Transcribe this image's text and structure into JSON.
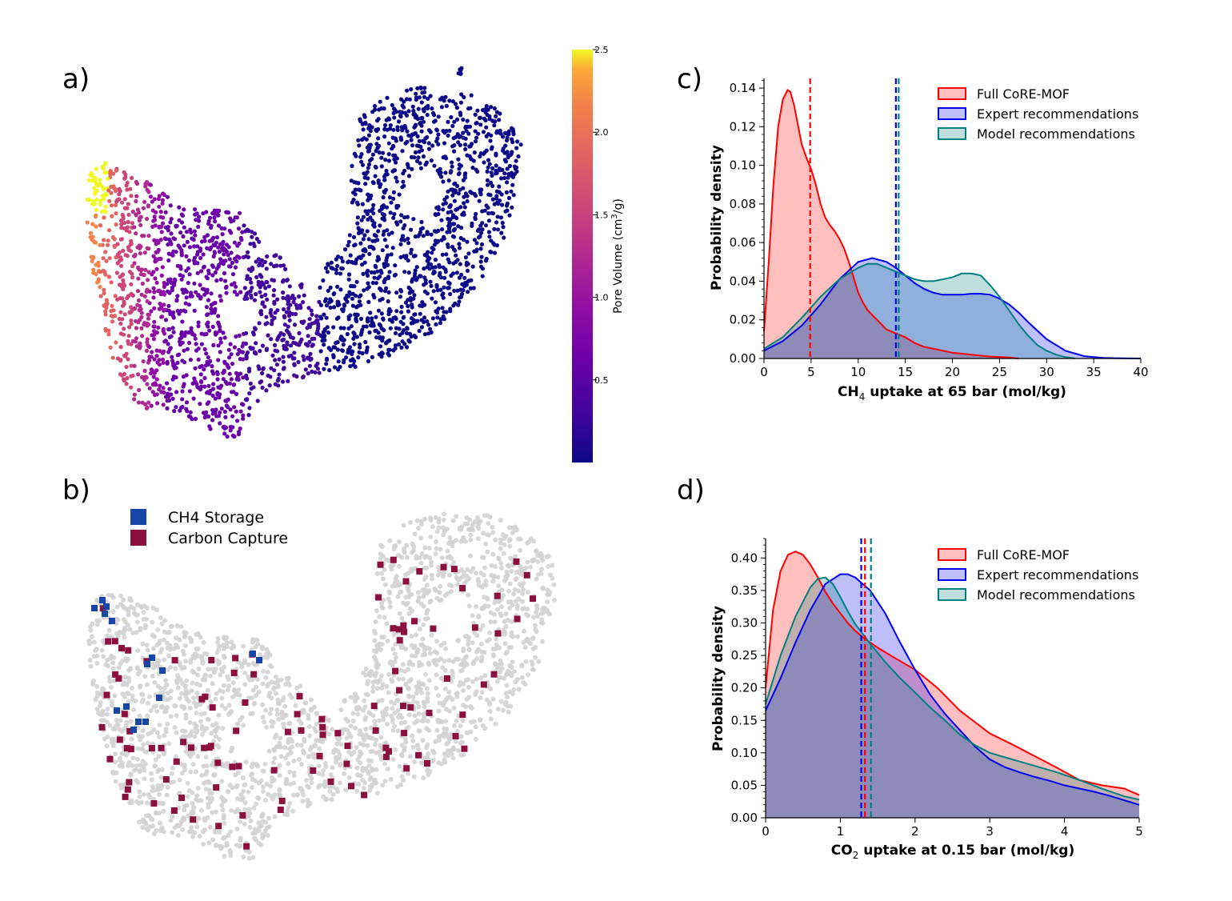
{
  "panel_labels": {
    "a": "a)",
    "b": "b)",
    "c": "c)",
    "d": "d)"
  },
  "colors": {
    "full": "#ff0000",
    "expert": "#0000ee",
    "model": "#008080",
    "ch4_storage": "#1747a6",
    "carbon_capture": "#8b1040",
    "background_points": "#d3d3d3"
  },
  "panel_a": {
    "colorbar": {
      "label_parts": [
        "Pore Volume (cm",
        "3",
        "/g)"
      ],
      "ticks": [
        "0.5",
        "1.0",
        "1.5",
        "2.0",
        "2.5"
      ],
      "colormap": "plasma",
      "range": [
        0.0,
        2.5
      ]
    }
  },
  "panel_b": {
    "legend": [
      {
        "label": "CH4 Storage",
        "color": "#1747a6"
      },
      {
        "label": "Carbon Capture",
        "color": "#8b1040"
      }
    ]
  },
  "chart_data": [
    {
      "id": "c",
      "type": "area",
      "title": "",
      "xlabel_parts": [
        "CH",
        "4",
        " uptake at 65 bar (mol/kg)"
      ],
      "ylabel": "Probability density",
      "xlim": [
        0,
        40
      ],
      "ylim": [
        0,
        0.145
      ],
      "xticks": [
        0,
        5,
        10,
        15,
        20,
        25,
        30,
        35,
        40
      ],
      "yticks": [
        0.0,
        0.02,
        0.04,
        0.06,
        0.08,
        0.1,
        0.12,
        0.14
      ],
      "ytick_decimals": 2,
      "legend_position": "top-right",
      "series": [
        {
          "name": "Full CoRE-MOF",
          "color": "#ff0000",
          "mean": 4.9,
          "x": [
            0,
            0.5,
            1,
            1.5,
            2,
            2.5,
            2.8,
            3.2,
            3.6,
            4,
            4.5,
            5,
            5.5,
            6,
            6.5,
            7,
            7.5,
            8,
            8.5,
            9,
            9.5,
            10,
            10.5,
            11,
            12,
            13,
            14,
            15,
            16,
            17,
            18,
            19,
            20,
            22,
            24,
            26,
            27
          ],
          "y": [
            0.014,
            0.05,
            0.09,
            0.12,
            0.134,
            0.139,
            0.138,
            0.131,
            0.121,
            0.111,
            0.104,
            0.098,
            0.09,
            0.08,
            0.073,
            0.069,
            0.066,
            0.062,
            0.057,
            0.05,
            0.042,
            0.034,
            0.029,
            0.025,
            0.02,
            0.015,
            0.013,
            0.011,
            0.008,
            0.006,
            0.005,
            0.004,
            0.003,
            0.002,
            0.001,
            0.0005,
            0.0
          ]
        },
        {
          "name": "Expert recommendations",
          "color": "#0000ee",
          "mean": 14.0,
          "x": [
            0,
            2,
            4,
            6,
            8,
            10,
            11.5,
            13,
            14,
            15,
            16,
            17,
            18,
            19,
            20,
            21,
            22,
            23,
            24,
            25,
            26,
            27,
            28,
            30,
            32,
            34,
            36,
            38,
            40
          ],
          "y": [
            0.004,
            0.009,
            0.017,
            0.028,
            0.041,
            0.05,
            0.052,
            0.05,
            0.047,
            0.043,
            0.039,
            0.036,
            0.034,
            0.033,
            0.033,
            0.033,
            0.0335,
            0.0335,
            0.033,
            0.031,
            0.028,
            0.024,
            0.019,
            0.01,
            0.004,
            0.0012,
            0.0003,
            0.0001,
            0.0
          ]
        },
        {
          "name": "Model recommendations",
          "color": "#008080",
          "mean": 14.3,
          "x": [
            0,
            2,
            4,
            6,
            8,
            10,
            11,
            12,
            13,
            14,
            15,
            16,
            17,
            18,
            19,
            20,
            21,
            22,
            23,
            24,
            25,
            26,
            27,
            28,
            29,
            30,
            31,
            32,
            33
          ],
          "y": [
            0.005,
            0.011,
            0.021,
            0.032,
            0.041,
            0.047,
            0.049,
            0.049,
            0.047,
            0.045,
            0.043,
            0.041,
            0.04,
            0.04,
            0.041,
            0.042,
            0.044,
            0.044,
            0.043,
            0.038,
            0.032,
            0.025,
            0.018,
            0.012,
            0.007,
            0.004,
            0.002,
            0.0007,
            0.0
          ]
        }
      ]
    },
    {
      "id": "d",
      "type": "area",
      "title": "",
      "xlabel_parts": [
        "CO",
        "2",
        " uptake at 0.15 bar (mol/kg)"
      ],
      "ylabel": "Probability density",
      "xlim": [
        0,
        5
      ],
      "ylim": [
        0,
        0.43
      ],
      "xticks": [
        0,
        1,
        2,
        3,
        4,
        5
      ],
      "yticks": [
        0.0,
        0.05,
        0.1,
        0.15,
        0.2,
        0.25,
        0.3,
        0.35,
        0.4
      ],
      "ytick_decimals": 2,
      "legend_position": "top-right",
      "series": [
        {
          "name": "Full CoRE-MOF",
          "color": "#ff0000",
          "mean": 1.33,
          "x": [
            0,
            0.1,
            0.2,
            0.3,
            0.4,
            0.5,
            0.6,
            0.7,
            0.8,
            0.9,
            1.0,
            1.1,
            1.2,
            1.3,
            1.4,
            1.5,
            1.7,
            2.0,
            2.3,
            2.6,
            3.0,
            3.3,
            3.6,
            3.9,
            4.2,
            4.5,
            4.8,
            5.0
          ],
          "y": [
            0.2,
            0.32,
            0.38,
            0.405,
            0.41,
            0.405,
            0.39,
            0.37,
            0.348,
            0.33,
            0.315,
            0.3,
            0.288,
            0.278,
            0.27,
            0.262,
            0.248,
            0.228,
            0.2,
            0.165,
            0.13,
            0.113,
            0.095,
            0.077,
            0.058,
            0.05,
            0.045,
            0.035
          ]
        },
        {
          "name": "Expert recommendations",
          "color": "#0000ee",
          "mean": 1.28,
          "x": [
            0,
            0.2,
            0.4,
            0.6,
            0.8,
            1.0,
            1.1,
            1.2,
            1.4,
            1.6,
            1.8,
            2.0,
            2.2,
            2.4,
            2.6,
            2.8,
            3.0,
            3.2,
            3.4,
            3.6,
            3.8,
            4.0,
            4.2,
            4.4,
            4.6,
            4.8,
            5.0
          ],
          "y": [
            0.165,
            0.215,
            0.27,
            0.32,
            0.36,
            0.375,
            0.375,
            0.37,
            0.35,
            0.315,
            0.27,
            0.228,
            0.19,
            0.16,
            0.135,
            0.11,
            0.09,
            0.078,
            0.07,
            0.063,
            0.057,
            0.05,
            0.045,
            0.04,
            0.034,
            0.027,
            0.02
          ]
        },
        {
          "name": "Model recommendations",
          "color": "#008080",
          "mean": 1.41,
          "x": [
            0,
            0.2,
            0.4,
            0.6,
            0.7,
            0.8,
            0.9,
            1.0,
            1.1,
            1.2,
            1.4,
            1.6,
            1.8,
            2.0,
            2.2,
            2.4,
            2.6,
            2.8,
            3.0,
            3.3,
            3.6,
            3.9,
            4.2,
            4.5,
            4.8,
            5.0
          ],
          "y": [
            0.175,
            0.25,
            0.31,
            0.355,
            0.368,
            0.37,
            0.36,
            0.34,
            0.318,
            0.298,
            0.268,
            0.24,
            0.215,
            0.193,
            0.17,
            0.15,
            0.128,
            0.112,
            0.1,
            0.09,
            0.08,
            0.07,
            0.058,
            0.045,
            0.033,
            0.028
          ]
        }
      ]
    }
  ]
}
